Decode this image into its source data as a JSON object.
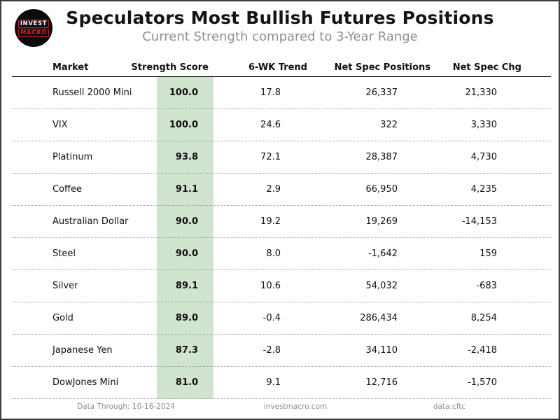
{
  "logo": {
    "line1": "INVEST",
    "line2": "MACRO"
  },
  "chart_data": {
    "type": "table",
    "title": "Speculators Most Bullish Futures Positions",
    "subtitle": "Current Strength compared to 3-Year Range",
    "columns": [
      "Market",
      "Strength Score",
      "6-WK Trend",
      "Net Spec Positions",
      "Net Spec Chg"
    ],
    "rows": [
      {
        "market": "Russell 2000 Mini",
        "strength_score": "100.0",
        "trend_6wk": "17.8",
        "net_spec_positions": "26,337",
        "net_spec_chg": "21,330"
      },
      {
        "market": "VIX",
        "strength_score": "100.0",
        "trend_6wk": "24.6",
        "net_spec_positions": "322",
        "net_spec_chg": "3,330"
      },
      {
        "market": "Platinum",
        "strength_score": "93.8",
        "trend_6wk": "72.1",
        "net_spec_positions": "28,387",
        "net_spec_chg": "4,730"
      },
      {
        "market": "Coffee",
        "strength_score": "91.1",
        "trend_6wk": "2.9",
        "net_spec_positions": "66,950",
        "net_spec_chg": "4,235"
      },
      {
        "market": "Australian Dollar",
        "strength_score": "90.0",
        "trend_6wk": "19.2",
        "net_spec_positions": "19,269",
        "net_spec_chg": "-14,153"
      },
      {
        "market": "Steel",
        "strength_score": "90.0",
        "trend_6wk": "8.0",
        "net_spec_positions": "-1,642",
        "net_spec_chg": "159"
      },
      {
        "market": "Silver",
        "strength_score": "89.1",
        "trend_6wk": "10.6",
        "net_spec_positions": "54,032",
        "net_spec_chg": "-683"
      },
      {
        "market": "Gold",
        "strength_score": "89.0",
        "trend_6wk": "-0.4",
        "net_spec_positions": "286,434",
        "net_spec_chg": "8,254"
      },
      {
        "market": "Japanese Yen",
        "strength_score": "87.3",
        "trend_6wk": "-2.8",
        "net_spec_positions": "34,110",
        "net_spec_chg": "-2,418"
      },
      {
        "market": "DowJones Mini",
        "strength_score": "81.0",
        "trend_6wk": "9.1",
        "net_spec_positions": "12,716",
        "net_spec_chg": "-1,570"
      }
    ],
    "layout": {
      "score_column_highlighted": true,
      "grid": "dotted-row-separators",
      "legend": "none"
    }
  },
  "footer": {
    "data_through": "Data Through: 10-16-2024",
    "website": "investmacro.com",
    "source": "data:cftc"
  },
  "colors": {
    "score_highlight_green": "#d1e4cf",
    "logo_red": "#c8201d",
    "subtitle_gray": "#8f8f8f",
    "footer_gray": "#8c8c8c",
    "page_border": "#3d3d3d"
  }
}
